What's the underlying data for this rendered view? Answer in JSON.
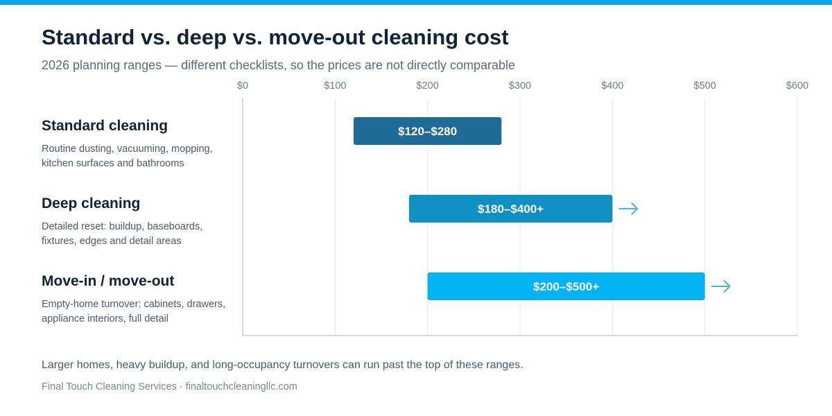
{
  "colors": {
    "top_bar": "#07a9e6",
    "bar_standard": "#1e6b97",
    "bar_deep": "#108fc3",
    "bar_move": "#03b3f3",
    "arrow": "#4ab3e6",
    "grid": "#e6eaee",
    "axis": "#c4ccd4",
    "tick_text": "#6b7c8c"
  },
  "chart_data": {
    "type": "bar",
    "orientation": "horizontal-range",
    "title": "Standard vs. deep vs. move-out cleaning cost",
    "subtitle": "2026 planning ranges — different checklists, so the prices are not directly comparable",
    "xlim": [
      0,
      600
    ],
    "x_ticks": [
      0,
      100,
      200,
      300,
      400,
      500,
      600
    ],
    "x_tick_labels": [
      "$0",
      "$100",
      "$200",
      "$300",
      "$400",
      "$500",
      "$600"
    ],
    "grid": true,
    "categories": [
      {
        "label": "Standard cleaning",
        "description": "Routine dusting, vacuuming, mopping, kitchen surfaces and bathrooms",
        "low": 120,
        "high": 280,
        "open_ended": false,
        "range_label": "$120–$280",
        "color_key": "bar_standard"
      },
      {
        "label": "Deep cleaning",
        "description": "Detailed reset: buildup, baseboards, fixtures, edges and detail areas",
        "low": 180,
        "high": 400,
        "open_ended": true,
        "range_label": "$180–$400+",
        "color_key": "bar_deep"
      },
      {
        "label": "Move-in / move-out",
        "description": "Empty-home turnover: cabinets, drawers, appliance interiors, full detail",
        "low": 200,
        "high": 500,
        "open_ended": true,
        "range_label": "$200–$500+",
        "color_key": "bar_move"
      }
    ]
  },
  "footnote": "Larger homes, heavy buildup, and long-occupancy turnovers can run past the top of these ranges.",
  "source": "Final Touch Cleaning Services · finaltouchcleaningllc.com"
}
